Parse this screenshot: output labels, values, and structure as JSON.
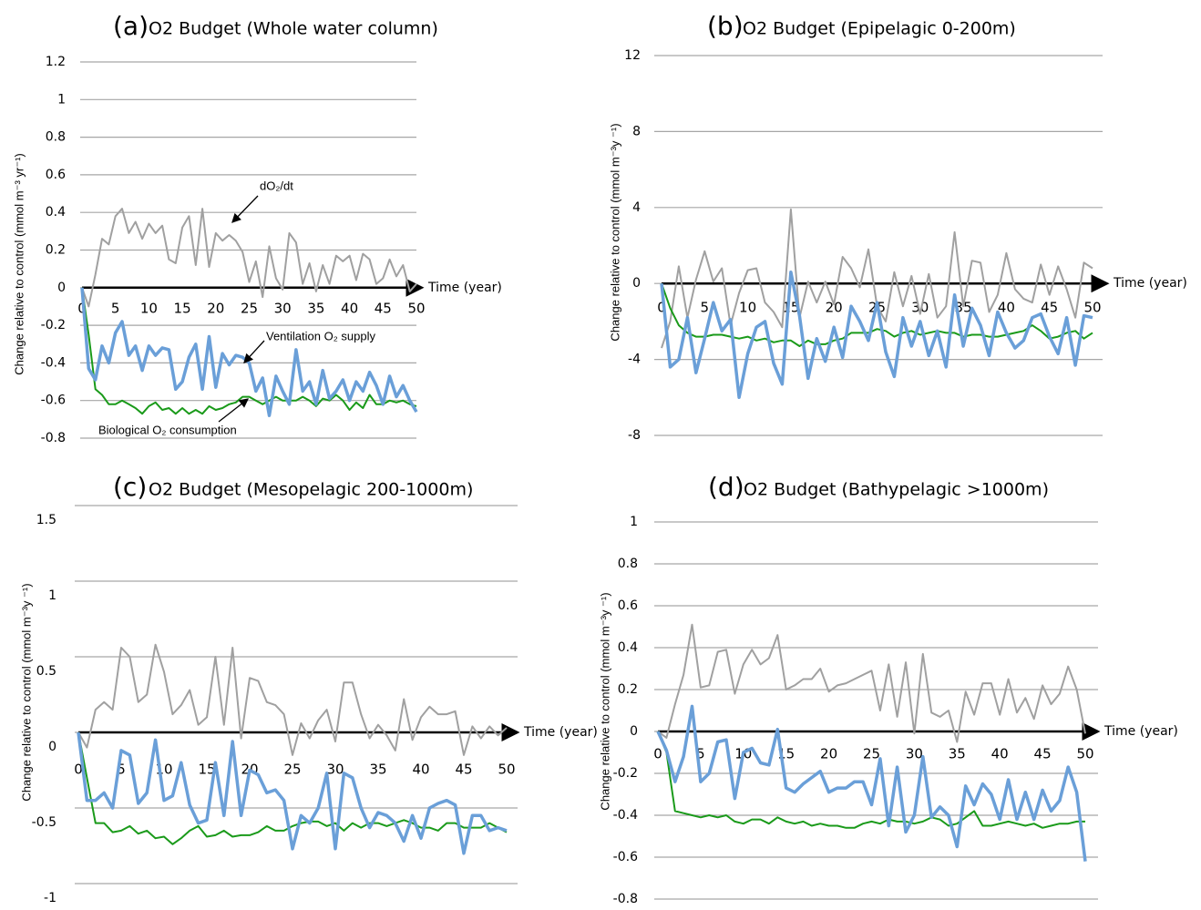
{
  "chart_data": [
    {
      "type": "line",
      "label": "(a)",
      "title": "O2 Budget (Whole water column)",
      "ylabel": "Change relative to control (mmol m⁻³ yr⁻¹)",
      "xlabel": "Time (year)",
      "grid": true,
      "x": [
        0,
        1,
        2,
        3,
        4,
        5,
        6,
        7,
        8,
        9,
        10,
        11,
        12,
        13,
        14,
        15,
        16,
        17,
        18,
        19,
        20,
        21,
        22,
        23,
        24,
        25,
        26,
        27,
        28,
        29,
        30,
        31,
        32,
        33,
        34,
        35,
        36,
        37,
        38,
        39,
        40,
        41,
        42,
        43,
        44,
        45,
        46,
        47,
        48,
        49,
        50
      ],
      "xlim": [
        0,
        50
      ],
      "xticks": [
        0,
        5,
        10,
        15,
        20,
        25,
        30,
        35,
        40,
        45,
        50
      ],
      "ylim": [
        -0.8,
        1.2
      ],
      "yticks": [
        1.2,
        1,
        0.8,
        0.6,
        0.4,
        0.2,
        0,
        -0.2,
        -0.4,
        -0.6,
        -0.8
      ],
      "annotations": [
        "dO₂/dt",
        "Ventilation O₂ supply",
        "Biological O₂ consumption"
      ],
      "series": [
        {
          "color": "#a0a0a0",
          "values": [
            0,
            -0.1,
            0.07,
            0.26,
            0.23,
            0.38,
            0.42,
            0.29,
            0.35,
            0.26,
            0.34,
            0.29,
            0.33,
            0.15,
            0.13,
            0.32,
            0.38,
            0.12,
            0.42,
            0.11,
            0.29,
            0.25,
            0.28,
            0.25,
            0.19,
            0.03,
            0.14,
            -0.05,
            0.22,
            0.05,
            -0.01,
            0.29,
            0.24,
            0.02,
            0.13,
            -0.02,
            0.12,
            0.02,
            0.17,
            0.14,
            0.17,
            0.04,
            0.18,
            0.15,
            0.02,
            0.05,
            0.15,
            0.06,
            0.12,
            -0.02,
            0.02
          ]
        },
        {
          "color": "#1a9a1a",
          "values": [
            0,
            -0.25,
            -0.54,
            -0.57,
            -0.62,
            -0.62,
            -0.6,
            -0.62,
            -0.64,
            -0.67,
            -0.63,
            -0.61,
            -0.65,
            -0.64,
            -0.67,
            -0.64,
            -0.67,
            -0.65,
            -0.67,
            -0.63,
            -0.65,
            -0.64,
            -0.62,
            -0.61,
            -0.58,
            -0.58,
            -0.6,
            -0.62,
            -0.6,
            -0.58,
            -0.6,
            -0.6,
            -0.6,
            -0.58,
            -0.6,
            -0.63,
            -0.59,
            -0.6,
            -0.57,
            -0.6,
            -0.65,
            -0.61,
            -0.64,
            -0.57,
            -0.62,
            -0.62,
            -0.6,
            -0.61,
            -0.6,
            -0.62,
            -0.63
          ]
        },
        {
          "color": "#6a9fd8",
          "values": [
            0,
            -0.43,
            -0.49,
            -0.31,
            -0.4,
            -0.24,
            -0.18,
            -0.36,
            -0.31,
            -0.44,
            -0.31,
            -0.36,
            -0.32,
            -0.33,
            -0.54,
            -0.5,
            -0.37,
            -0.3,
            -0.54,
            -0.26,
            -0.53,
            -0.35,
            -0.41,
            -0.36,
            -0.37,
            -0.4,
            -0.55,
            -0.48,
            -0.68,
            -0.47,
            -0.55,
            -0.62,
            -0.33,
            -0.55,
            -0.5,
            -0.62,
            -0.44,
            -0.59,
            -0.55,
            -0.49,
            -0.6,
            -0.5,
            -0.55,
            -0.45,
            -0.52,
            -0.62,
            -0.47,
            -0.58,
            -0.52,
            -0.6,
            -0.66
          ]
        }
      ]
    },
    {
      "type": "line",
      "label": "(b)",
      "title": "O2 Budget (Epipelagic 0-200m)",
      "ylabel": "Change relative to control (mmol m⁻³y ⁻¹)",
      "xlabel": "Time (year)",
      "grid": true,
      "x": [
        0,
        1,
        2,
        3,
        4,
        5,
        6,
        7,
        8,
        9,
        10,
        11,
        12,
        13,
        14,
        15,
        16,
        17,
        18,
        19,
        20,
        21,
        22,
        23,
        24,
        25,
        26,
        27,
        28,
        29,
        30,
        31,
        32,
        33,
        34,
        35,
        36,
        37,
        38,
        39,
        40,
        41,
        42,
        43,
        44,
        45,
        46,
        47,
        48,
        49,
        50
      ],
      "xlim": [
        0,
        50
      ],
      "xticks": [
        0,
        5,
        10,
        15,
        20,
        25,
        30,
        35,
        40,
        45,
        50
      ],
      "ylim": [
        -8,
        12
      ],
      "yticks": [
        12,
        8,
        4,
        0,
        -4,
        -8
      ],
      "series": [
        {
          "color": "#a0a0a0",
          "values": [
            -3.4,
            -2,
            0.9,
            -1.8,
            0.2,
            1.7,
            0.1,
            0.8,
            -2.2,
            -0.5,
            0.7,
            0.8,
            -1,
            -1.5,
            -2.3,
            3.9,
            -1.8,
            0.1,
            -1,
            0.1,
            -1.1,
            1.4,
            0.8,
            -0.2,
            1.8,
            -1.2,
            -2,
            0.6,
            -1.2,
            0.4,
            -1.6,
            0.5,
            -1.8,
            -1.2,
            2.7,
            -1.2,
            1.2,
            1.1,
            -1.5,
            -0.6,
            1.6,
            -0.3,
            -0.8,
            -1,
            1,
            -0.6,
            0.9,
            -0.3,
            -1.8,
            1.1,
            0.8
          ]
        },
        {
          "color": "#1a9a1a",
          "values": [
            0,
            -1.3,
            -2.2,
            -2.6,
            -2.8,
            -2.8,
            -2.7,
            -2.7,
            -2.8,
            -2.9,
            -2.8,
            -3,
            -2.9,
            -3.1,
            -3,
            -3,
            -3.3,
            -3,
            -3.2,
            -3.2,
            -3,
            -2.9,
            -2.6,
            -2.6,
            -2.6,
            -2.4,
            -2.5,
            -2.8,
            -2.6,
            -2.5,
            -2.7,
            -2.6,
            -2.5,
            -2.6,
            -2.6,
            -2.8,
            -2.7,
            -2.7,
            -2.8,
            -2.8,
            -2.7,
            -2.6,
            -2.5,
            -2.2,
            -2.5,
            -2.9,
            -2.8,
            -2.6,
            -2.5,
            -2.9,
            -2.6
          ]
        },
        {
          "color": "#6a9fd8",
          "values": [
            0,
            -4.4,
            -4,
            -1.8,
            -4.7,
            -2.9,
            -1,
            -2.5,
            -1.9,
            -6,
            -3.7,
            -2.3,
            -2,
            -4.2,
            -5.3,
            0.6,
            -1.7,
            -5,
            -2.9,
            -4.1,
            -2.3,
            -3.9,
            -1.2,
            -2,
            -3,
            -1,
            -3.6,
            -4.9,
            -1.8,
            -3.3,
            -2,
            -3.8,
            -2.5,
            -4.4,
            -0.6,
            -3.3,
            -1.3,
            -2.2,
            -3.8,
            -1.5,
            -2.6,
            -3.4,
            -3,
            -1.8,
            -1.6,
            -2.8,
            -3.7,
            -1.8,
            -4.3,
            -1.7,
            -1.8
          ]
        }
      ]
    },
    {
      "type": "line",
      "label": "(c)",
      "title": "O2 Budget (Mesopelagic 200-1000m)",
      "ylabel": "Change relative to control (mmol m⁻³y ⁻¹)",
      "xlabel": "Time (year)",
      "grid": true,
      "x": [
        0,
        1,
        2,
        3,
        4,
        5,
        6,
        7,
        8,
        9,
        10,
        11,
        12,
        13,
        14,
        15,
        16,
        17,
        18,
        19,
        20,
        21,
        22,
        23,
        24,
        25,
        26,
        27,
        28,
        29,
        30,
        31,
        32,
        33,
        34,
        35,
        36,
        37,
        38,
        39,
        40,
        41,
        42,
        43,
        44,
        45,
        46,
        47,
        48,
        49,
        50
      ],
      "xlim": [
        0,
        50
      ],
      "xticks": [
        0,
        5,
        10,
        15,
        20,
        25,
        30,
        35,
        40,
        45,
        50
      ],
      "ylim": [
        -1,
        1.5
      ],
      "yticks": [
        1.5,
        1,
        0.5,
        0,
        -0.5,
        -1
      ],
      "series": [
        {
          "color": "#a0a0a0",
          "values": [
            0,
            -0.1,
            0.15,
            0.2,
            0.15,
            0.56,
            0.5,
            0.2,
            0.25,
            0.58,
            0.4,
            0.12,
            0.18,
            0.28,
            0.05,
            0.1,
            0.5,
            0.05,
            0.56,
            -0.04,
            0.36,
            0.34,
            0.2,
            0.18,
            0.12,
            -0.15,
            0.06,
            -0.04,
            0.08,
            0.15,
            -0.06,
            0.33,
            0.33,
            0.12,
            -0.04,
            0.05,
            -0.02,
            -0.12,
            0.22,
            -0.05,
            0.1,
            0.17,
            0.12,
            0.12,
            0.14,
            -0.15,
            0.04,
            -0.04,
            0.04,
            -0.02,
            0.03
          ]
        },
        {
          "color": "#1a9a1a",
          "values": [
            0,
            -0.3,
            -0.6,
            -0.6,
            -0.66,
            -0.65,
            -0.62,
            -0.67,
            -0.65,
            -0.7,
            -0.69,
            -0.74,
            -0.7,
            -0.65,
            -0.62,
            -0.69,
            -0.68,
            -0.65,
            -0.69,
            -0.68,
            -0.68,
            -0.66,
            -0.62,
            -0.65,
            -0.65,
            -0.62,
            -0.6,
            -0.59,
            -0.59,
            -0.62,
            -0.6,
            -0.65,
            -0.6,
            -0.63,
            -0.6,
            -0.6,
            -0.62,
            -0.6,
            -0.58,
            -0.6,
            -0.63,
            -0.63,
            -0.65,
            -0.6,
            -0.6,
            -0.63,
            -0.63,
            -0.63,
            -0.6,
            -0.63,
            -0.66
          ]
        },
        {
          "color": "#6a9fd8",
          "values": [
            0,
            -0.45,
            -0.45,
            -0.4,
            -0.5,
            -0.12,
            -0.15,
            -0.47,
            -0.4,
            -0.05,
            -0.45,
            -0.42,
            -0.2,
            -0.48,
            -0.6,
            -0.58,
            -0.2,
            -0.55,
            -0.06,
            -0.55,
            -0.25,
            -0.28,
            -0.4,
            -0.38,
            -0.45,
            -0.77,
            -0.55,
            -0.6,
            -0.5,
            -0.27,
            -0.77,
            -0.27,
            -0.3,
            -0.5,
            -0.63,
            -0.53,
            -0.55,
            -0.6,
            -0.72,
            -0.55,
            -0.7,
            -0.5,
            -0.47,
            -0.45,
            -0.48,
            -0.8,
            -0.55,
            -0.55,
            -0.65,
            -0.63,
            -0.65
          ]
        }
      ]
    },
    {
      "type": "line",
      "label": "(d)",
      "title": "O2 Budget (Bathypelagic >1000m)",
      "ylabel": "Change relative to control (mmol m⁻³y ⁻¹)",
      "xlabel": "Time (year)",
      "grid": true,
      "x": [
        0,
        1,
        2,
        3,
        4,
        5,
        6,
        7,
        8,
        9,
        10,
        11,
        12,
        13,
        14,
        15,
        16,
        17,
        18,
        19,
        20,
        21,
        22,
        23,
        24,
        25,
        26,
        27,
        28,
        29,
        30,
        31,
        32,
        33,
        34,
        35,
        36,
        37,
        38,
        39,
        40,
        41,
        42,
        43,
        44,
        45,
        46,
        47,
        48,
        49,
        50
      ],
      "xlim": [
        0,
        50
      ],
      "xticks": [
        0,
        5,
        10,
        15,
        20,
        25,
        30,
        35,
        40,
        45,
        50
      ],
      "ylim": [
        -0.8,
        1
      ],
      "yticks": [
        1,
        0.8,
        0.6,
        0.4,
        0.2,
        0,
        -0.2,
        -0.4,
        -0.6,
        -0.8
      ],
      "series": [
        {
          "color": "#a0a0a0",
          "values": [
            0,
            -0.03,
            0.13,
            0.27,
            0.51,
            0.21,
            0.22,
            0.38,
            0.39,
            0.18,
            0.32,
            0.39,
            0.32,
            0.35,
            0.46,
            0.2,
            0.22,
            0.25,
            0.25,
            0.3,
            0.19,
            0.22,
            0.23,
            0.25,
            0.27,
            0.29,
            0.1,
            0.32,
            0.07,
            0.33,
            -0.01,
            0.37,
            0.09,
            0.07,
            0.1,
            -0.05,
            0.19,
            0.08,
            0.23,
            0.23,
            0.08,
            0.25,
            0.09,
            0.16,
            0.06,
            0.22,
            0.13,
            0.18,
            0.31,
            0.2,
            -0.01
          ]
        },
        {
          "color": "#1a9a1a",
          "values": [
            0,
            -0.1,
            -0.38,
            -0.39,
            -0.4,
            -0.41,
            -0.4,
            -0.41,
            -0.4,
            -0.43,
            -0.44,
            -0.42,
            -0.42,
            -0.44,
            -0.41,
            -0.43,
            -0.44,
            -0.43,
            -0.45,
            -0.44,
            -0.45,
            -0.45,
            -0.46,
            -0.46,
            -0.44,
            -0.43,
            -0.44,
            -0.42,
            -0.43,
            -0.43,
            -0.44,
            -0.43,
            -0.41,
            -0.42,
            -0.45,
            -0.44,
            -0.41,
            -0.38,
            -0.45,
            -0.45,
            -0.44,
            -0.43,
            -0.44,
            -0.45,
            -0.44,
            -0.46,
            -0.45,
            -0.44,
            -0.44,
            -0.43,
            -0.43
          ]
        },
        {
          "color": "#6a9fd8",
          "values": [
            0,
            -0.09,
            -0.24,
            -0.12,
            0.12,
            -0.24,
            -0.2,
            -0.05,
            -0.04,
            -0.32,
            -0.1,
            -0.08,
            -0.15,
            -0.16,
            0.01,
            -0.27,
            -0.29,
            -0.25,
            -0.22,
            -0.19,
            -0.29,
            -0.27,
            -0.27,
            -0.24,
            -0.24,
            -0.35,
            -0.13,
            -0.45,
            -0.17,
            -0.48,
            -0.4,
            -0.12,
            -0.41,
            -0.36,
            -0.4,
            -0.55,
            -0.26,
            -0.35,
            -0.25,
            -0.3,
            -0.42,
            -0.23,
            -0.42,
            -0.29,
            -0.42,
            -0.28,
            -0.38,
            -0.33,
            -0.17,
            -0.29,
            -0.62
          ]
        }
      ]
    }
  ]
}
